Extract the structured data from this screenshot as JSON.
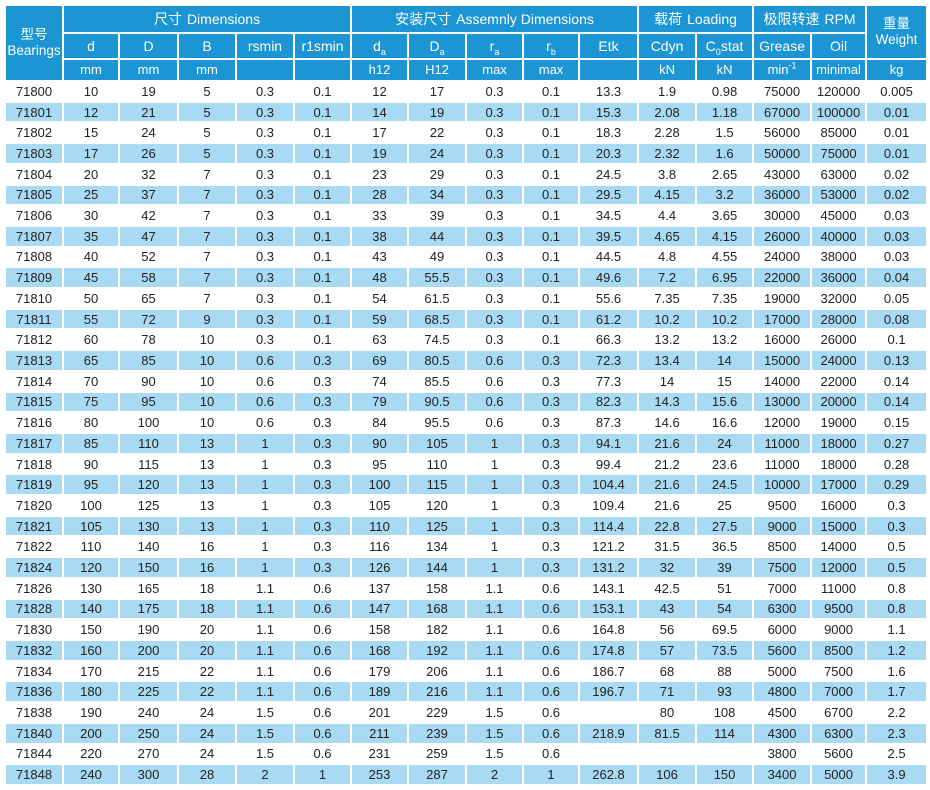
{
  "colors": {
    "header_blue": "#1b95d4",
    "row_blue": "#a8daf3",
    "text_dark": "#222222",
    "grid_white": "#ffffff"
  },
  "table": {
    "bearings_header": {
      "zh": "型号",
      "en": "Bearings"
    },
    "groups": {
      "dimensions": {
        "zh": "尺寸",
        "en": "Dimensions"
      },
      "assembly": {
        "zh": "安装尺寸",
        "en": "Assemnly Dimensions"
      },
      "loading": {
        "zh": "载荷",
        "en": "Loading"
      },
      "rpm": {
        "zh": "极限转速",
        "en": "RPM"
      }
    },
    "weight_header": {
      "zh": "重量",
      "en": "Weight",
      "unit": "kg"
    },
    "col_ids": [
      "model",
      "d",
      "D",
      "B",
      "rsmin",
      "r1smin",
      "da",
      "Da",
      "ra",
      "rb",
      "etk",
      "cdyn",
      "c0stat",
      "grease",
      "oil",
      "weight"
    ],
    "columns": [
      {
        "pre": "d",
        "sub": "",
        "post": "",
        "unit": "mm",
        "unit_sup": ""
      },
      {
        "pre": "D",
        "sub": "",
        "post": "",
        "unit": "mm",
        "unit_sup": ""
      },
      {
        "pre": "B",
        "sub": "",
        "post": "",
        "unit": "mm",
        "unit_sup": ""
      },
      {
        "pre": "rsmin",
        "sub": "",
        "post": "",
        "unit": "",
        "unit_sup": ""
      },
      {
        "pre": "r1smin",
        "sub": "",
        "post": "",
        "unit": "",
        "unit_sup": ""
      },
      {
        "pre": "d",
        "sub": "a",
        "post": "",
        "unit": "h12",
        "unit_sup": ""
      },
      {
        "pre": "D",
        "sub": "a",
        "post": "",
        "unit": "H12",
        "unit_sup": ""
      },
      {
        "pre": "r",
        "sub": "a",
        "post": "",
        "unit": "max",
        "unit_sup": ""
      },
      {
        "pre": "r",
        "sub": "b",
        "post": "",
        "unit": "max",
        "unit_sup": ""
      },
      {
        "pre": "Etk",
        "sub": "",
        "post": "",
        "unit": "",
        "unit_sup": ""
      },
      {
        "pre": "Cdyn",
        "sub": "",
        "post": "",
        "unit": "kN",
        "unit_sup": ""
      },
      {
        "pre": "C",
        "sub": "0",
        "post": "stat",
        "unit": "kN",
        "unit_sup": ""
      },
      {
        "pre": "Grease",
        "sub": "",
        "post": "",
        "unit": "min",
        "unit_sup": "-1"
      },
      {
        "pre": "Oil",
        "sub": "",
        "post": "",
        "unit": "minimal",
        "unit_sup": ""
      }
    ],
    "rows": [
      [
        "71800",
        "10",
        "19",
        "5",
        "0.3",
        "0.1",
        "12",
        "17",
        "0.3",
        "0.1",
        "13.3",
        "1.9",
        "0.98",
        "75000",
        "120000",
        "0.005"
      ],
      [
        "71801",
        "12",
        "21",
        "5",
        "0.3",
        "0.1",
        "14",
        "19",
        "0.3",
        "0.1",
        "15.3",
        "2.08",
        "1.18",
        "67000",
        "100000",
        "0.01"
      ],
      [
        "71802",
        "15",
        "24",
        "5",
        "0.3",
        "0.1",
        "17",
        "22",
        "0.3",
        "0.1",
        "18.3",
        "2.28",
        "1.5",
        "56000",
        "85000",
        "0.01"
      ],
      [
        "71803",
        "17",
        "26",
        "5",
        "0.3",
        "0.1",
        "19",
        "24",
        "0.3",
        "0.1",
        "20.3",
        "2.32",
        "1.6",
        "50000",
        "75000",
        "0.01"
      ],
      [
        "71804",
        "20",
        "32",
        "7",
        "0.3",
        "0.1",
        "23",
        "29",
        "0.3",
        "0.1",
        "24.5",
        "3.8",
        "2.65",
        "43000",
        "63000",
        "0.02"
      ],
      [
        "71805",
        "25",
        "37",
        "7",
        "0.3",
        "0.1",
        "28",
        "34",
        "0.3",
        "0.1",
        "29.5",
        "4.15",
        "3.2",
        "36000",
        "53000",
        "0.02"
      ],
      [
        "71806",
        "30",
        "42",
        "7",
        "0.3",
        "0.1",
        "33",
        "39",
        "0.3",
        "0.1",
        "34.5",
        "4.4",
        "3.65",
        "30000",
        "45000",
        "0.03"
      ],
      [
        "71807",
        "35",
        "47",
        "7",
        "0.3",
        "0.1",
        "38",
        "44",
        "0.3",
        "0.1",
        "39.5",
        "4.65",
        "4.15",
        "26000",
        "40000",
        "0.03"
      ],
      [
        "71808",
        "40",
        "52",
        "7",
        "0.3",
        "0.1",
        "43",
        "49",
        "0.3",
        "0.1",
        "44.5",
        "4.8",
        "4.55",
        "24000",
        "38000",
        "0.03"
      ],
      [
        "71809",
        "45",
        "58",
        "7",
        "0.3",
        "0.1",
        "48",
        "55.5",
        "0.3",
        "0.1",
        "49.6",
        "7.2",
        "6.95",
        "22000",
        "36000",
        "0.04"
      ],
      [
        "71810",
        "50",
        "65",
        "7",
        "0.3",
        "0.1",
        "54",
        "61.5",
        "0.3",
        "0.1",
        "55.6",
        "7.35",
        "7.35",
        "19000",
        "32000",
        "0.05"
      ],
      [
        "71811",
        "55",
        "72",
        "9",
        "0.3",
        "0.1",
        "59",
        "68.5",
        "0.3",
        "0.1",
        "61.2",
        "10.2",
        "10.2",
        "17000",
        "28000",
        "0.08"
      ],
      [
        "71812",
        "60",
        "78",
        "10",
        "0.3",
        "0.1",
        "63",
        "74.5",
        "0.3",
        "0.1",
        "66.3",
        "13.2",
        "13.2",
        "16000",
        "26000",
        "0.1"
      ],
      [
        "71813",
        "65",
        "85",
        "10",
        "0.6",
        "0.3",
        "69",
        "80.5",
        "0.6",
        "0.3",
        "72.3",
        "13.4",
        "14",
        "15000",
        "24000",
        "0.13"
      ],
      [
        "71814",
        "70",
        "90",
        "10",
        "0.6",
        "0.3",
        "74",
        "85.5",
        "0.6",
        "0.3",
        "77.3",
        "14",
        "15",
        "14000",
        "22000",
        "0.14"
      ],
      [
        "71815",
        "75",
        "95",
        "10",
        "0.6",
        "0.3",
        "79",
        "90.5",
        "0.6",
        "0.3",
        "82.3",
        "14.3",
        "15.6",
        "13000",
        "20000",
        "0.14"
      ],
      [
        "71816",
        "80",
        "100",
        "10",
        "0.6",
        "0.3",
        "84",
        "95.5",
        "0.6",
        "0.3",
        "87.3",
        "14.6",
        "16.6",
        "12000",
        "19000",
        "0.15"
      ],
      [
        "71817",
        "85",
        "110",
        "13",
        "1",
        "0.3",
        "90",
        "105",
        "1",
        "0.3",
        "94.1",
        "21.6",
        "24",
        "11000",
        "18000",
        "0.27"
      ],
      [
        "71818",
        "90",
        "115",
        "13",
        "1",
        "0.3",
        "95",
        "110",
        "1",
        "0.3",
        "99.4",
        "21.2",
        "23.6",
        "11000",
        "18000",
        "0.28"
      ],
      [
        "71819",
        "95",
        "120",
        "13",
        "1",
        "0.3",
        "100",
        "115",
        "1",
        "0.3",
        "104.4",
        "21.6",
        "24.5",
        "10000",
        "17000",
        "0.29"
      ],
      [
        "71820",
        "100",
        "125",
        "13",
        "1",
        "0.3",
        "105",
        "120",
        "1",
        "0.3",
        "109.4",
        "21.6",
        "25",
        "9500",
        "16000",
        "0.3"
      ],
      [
        "71821",
        "105",
        "130",
        "13",
        "1",
        "0.3",
        "110",
        "125",
        "1",
        "0.3",
        "114.4",
        "22.8",
        "27.5",
        "9000",
        "15000",
        "0.3"
      ],
      [
        "71822",
        "110",
        "140",
        "16",
        "1",
        "0.3",
        "116",
        "134",
        "1",
        "0.3",
        "121.2",
        "31.5",
        "36.5",
        "8500",
        "14000",
        "0.5"
      ],
      [
        "71824",
        "120",
        "150",
        "16",
        "1",
        "0.3",
        "126",
        "144",
        "1",
        "0.3",
        "131.2",
        "32",
        "39",
        "7500",
        "12000",
        "0.5"
      ],
      [
        "71826",
        "130",
        "165",
        "18",
        "1.1",
        "0.6",
        "137",
        "158",
        "1.1",
        "0.6",
        "143.1",
        "42.5",
        "51",
        "7000",
        "11000",
        "0.8"
      ],
      [
        "71828",
        "140",
        "175",
        "18",
        "1.1",
        "0.6",
        "147",
        "168",
        "1.1",
        "0.6",
        "153.1",
        "43",
        "54",
        "6300",
        "9500",
        "0.8"
      ],
      [
        "71830",
        "150",
        "190",
        "20",
        "1.1",
        "0.6",
        "158",
        "182",
        "1.1",
        "0.6",
        "164.8",
        "56",
        "69.5",
        "6000",
        "9000",
        "1.1"
      ],
      [
        "71832",
        "160",
        "200",
        "20",
        "1.1",
        "0.6",
        "168",
        "192",
        "1.1",
        "0.6",
        "174.8",
        "57",
        "73.5",
        "5600",
        "8500",
        "1.2"
      ],
      [
        "71834",
        "170",
        "215",
        "22",
        "1.1",
        "0.6",
        "179",
        "206",
        "1.1",
        "0.6",
        "186.7",
        "68",
        "88",
        "5000",
        "7500",
        "1.6"
      ],
      [
        "71836",
        "180",
        "225",
        "22",
        "1.1",
        "0.6",
        "189",
        "216",
        "1.1",
        "0.6",
        "196.7",
        "71",
        "93",
        "4800",
        "7000",
        "1.7"
      ],
      [
        "71838",
        "190",
        "240",
        "24",
        "1.5",
        "0.6",
        "201",
        "229",
        "1.5",
        "0.6",
        "",
        "80",
        "108",
        "4500",
        "6700",
        "2.2"
      ],
      [
        "71840",
        "200",
        "250",
        "24",
        "1.5",
        "0.6",
        "211",
        "239",
        "1.5",
        "0.6",
        "218.9",
        "81.5",
        "114",
        "4300",
        "6300",
        "2.3"
      ],
      [
        "71844",
        "220",
        "270",
        "24",
        "1.5",
        "0.6",
        "231",
        "259",
        "1.5",
        "0.6",
        "",
        "",
        "",
        "3800",
        "5600",
        "2.5"
      ],
      [
        "71848",
        "240",
        "300",
        "28",
        "2",
        "1",
        "253",
        "287",
        "2",
        "1",
        "262.8",
        "106",
        "150",
        "3400",
        "5000",
        "3.9"
      ]
    ]
  }
}
